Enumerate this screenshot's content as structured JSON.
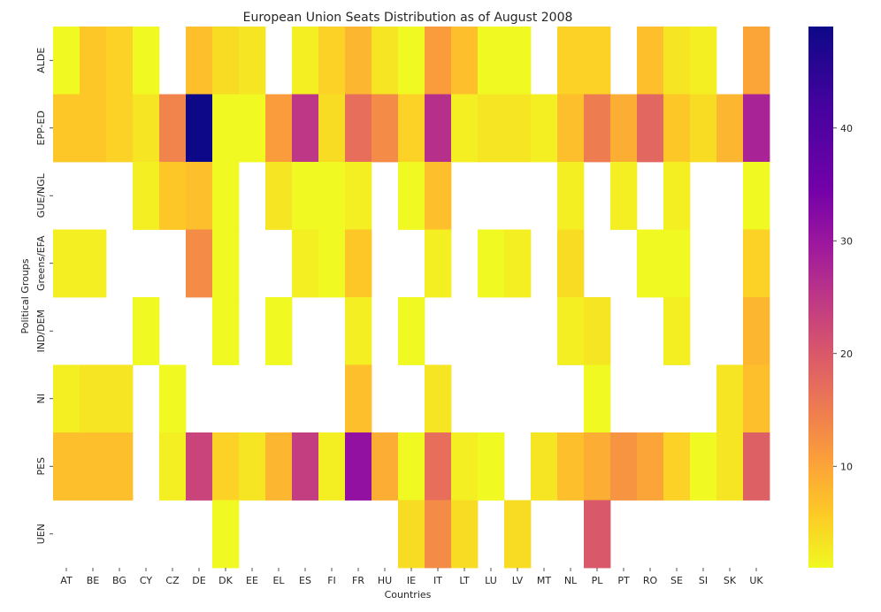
{
  "chart_data": {
    "type": "heatmap",
    "title": "European Union Seats Distribution as of August 2008",
    "xlabel": "Countries",
    "ylabel": "Political Groups",
    "x_categories": [
      "AT",
      "BE",
      "BG",
      "CY",
      "CZ",
      "DE",
      "DK",
      "EE",
      "EL",
      "ES",
      "FI",
      "FR",
      "HU",
      "IE",
      "IT",
      "LT",
      "LU",
      "LV",
      "MT",
      "NL",
      "PL",
      "PT",
      "RO",
      "SE",
      "SI",
      "SK",
      "UK"
    ],
    "y_categories": [
      "ALDE",
      "EPP-ED",
      "GUE/NGL",
      "Greens/EFA",
      "IND/DEM",
      "NI",
      "PES",
      "UEN"
    ],
    "colorscale": "plasma_r",
    "colorbar_range": [
      1,
      49
    ],
    "colorbar_ticks": [
      10,
      20,
      30,
      40
    ],
    "missing_cells_blank": true,
    "values": [
      [
        1,
        6,
        5,
        1,
        null,
        7,
        4,
        3,
        null,
        2,
        5,
        8,
        3,
        1,
        11,
        7,
        1,
        1,
        null,
        5,
        5,
        null,
        7,
        3,
        2,
        null,
        10
      ],
      [
        6,
        6,
        5,
        3,
        14,
        49,
        1,
        1,
        11,
        25,
        4,
        17,
        13,
        5,
        26,
        2,
        3,
        3,
        2,
        7,
        15,
        9,
        18,
        6,
        4,
        8,
        28
      ],
      [
        null,
        null,
        null,
        2,
        6,
        7,
        1,
        null,
        3,
        1,
        1,
        2,
        null,
        1,
        7,
        null,
        null,
        null,
        null,
        2,
        null,
        2,
        null,
        2,
        null,
        null,
        1
      ],
      [
        2,
        2,
        null,
        null,
        null,
        13,
        1,
        null,
        null,
        2,
        1,
        6,
        null,
        null,
        2,
        null,
        1,
        2,
        null,
        4,
        null,
        null,
        1,
        1,
        null,
        null,
        5
      ],
      [
        null,
        null,
        null,
        1,
        null,
        null,
        1,
        null,
        1,
        null,
        null,
        2,
        null,
        1,
        null,
        null,
        null,
        null,
        null,
        2,
        3,
        null,
        null,
        2,
        null,
        null,
        8
      ],
      [
        2,
        3,
        3,
        null,
        1,
        null,
        null,
        null,
        null,
        null,
        null,
        7,
        null,
        null,
        3,
        null,
        null,
        null,
        null,
        null,
        1,
        null,
        null,
        null,
        null,
        3,
        7
      ],
      [
        7,
        7,
        7,
        null,
        2,
        23,
        5,
        3,
        8,
        24,
        2,
        31,
        9,
        1,
        17,
        2,
        1,
        null,
        3,
        7,
        9,
        12,
        10,
        5,
        1,
        3,
        19
      ],
      [
        null,
        null,
        null,
        null,
        null,
        null,
        1,
        null,
        null,
        null,
        null,
        null,
        null,
        4,
        13,
        4,
        null,
        4,
        null,
        null,
        20,
        null,
        null,
        null,
        null,
        null,
        null
      ]
    ]
  }
}
